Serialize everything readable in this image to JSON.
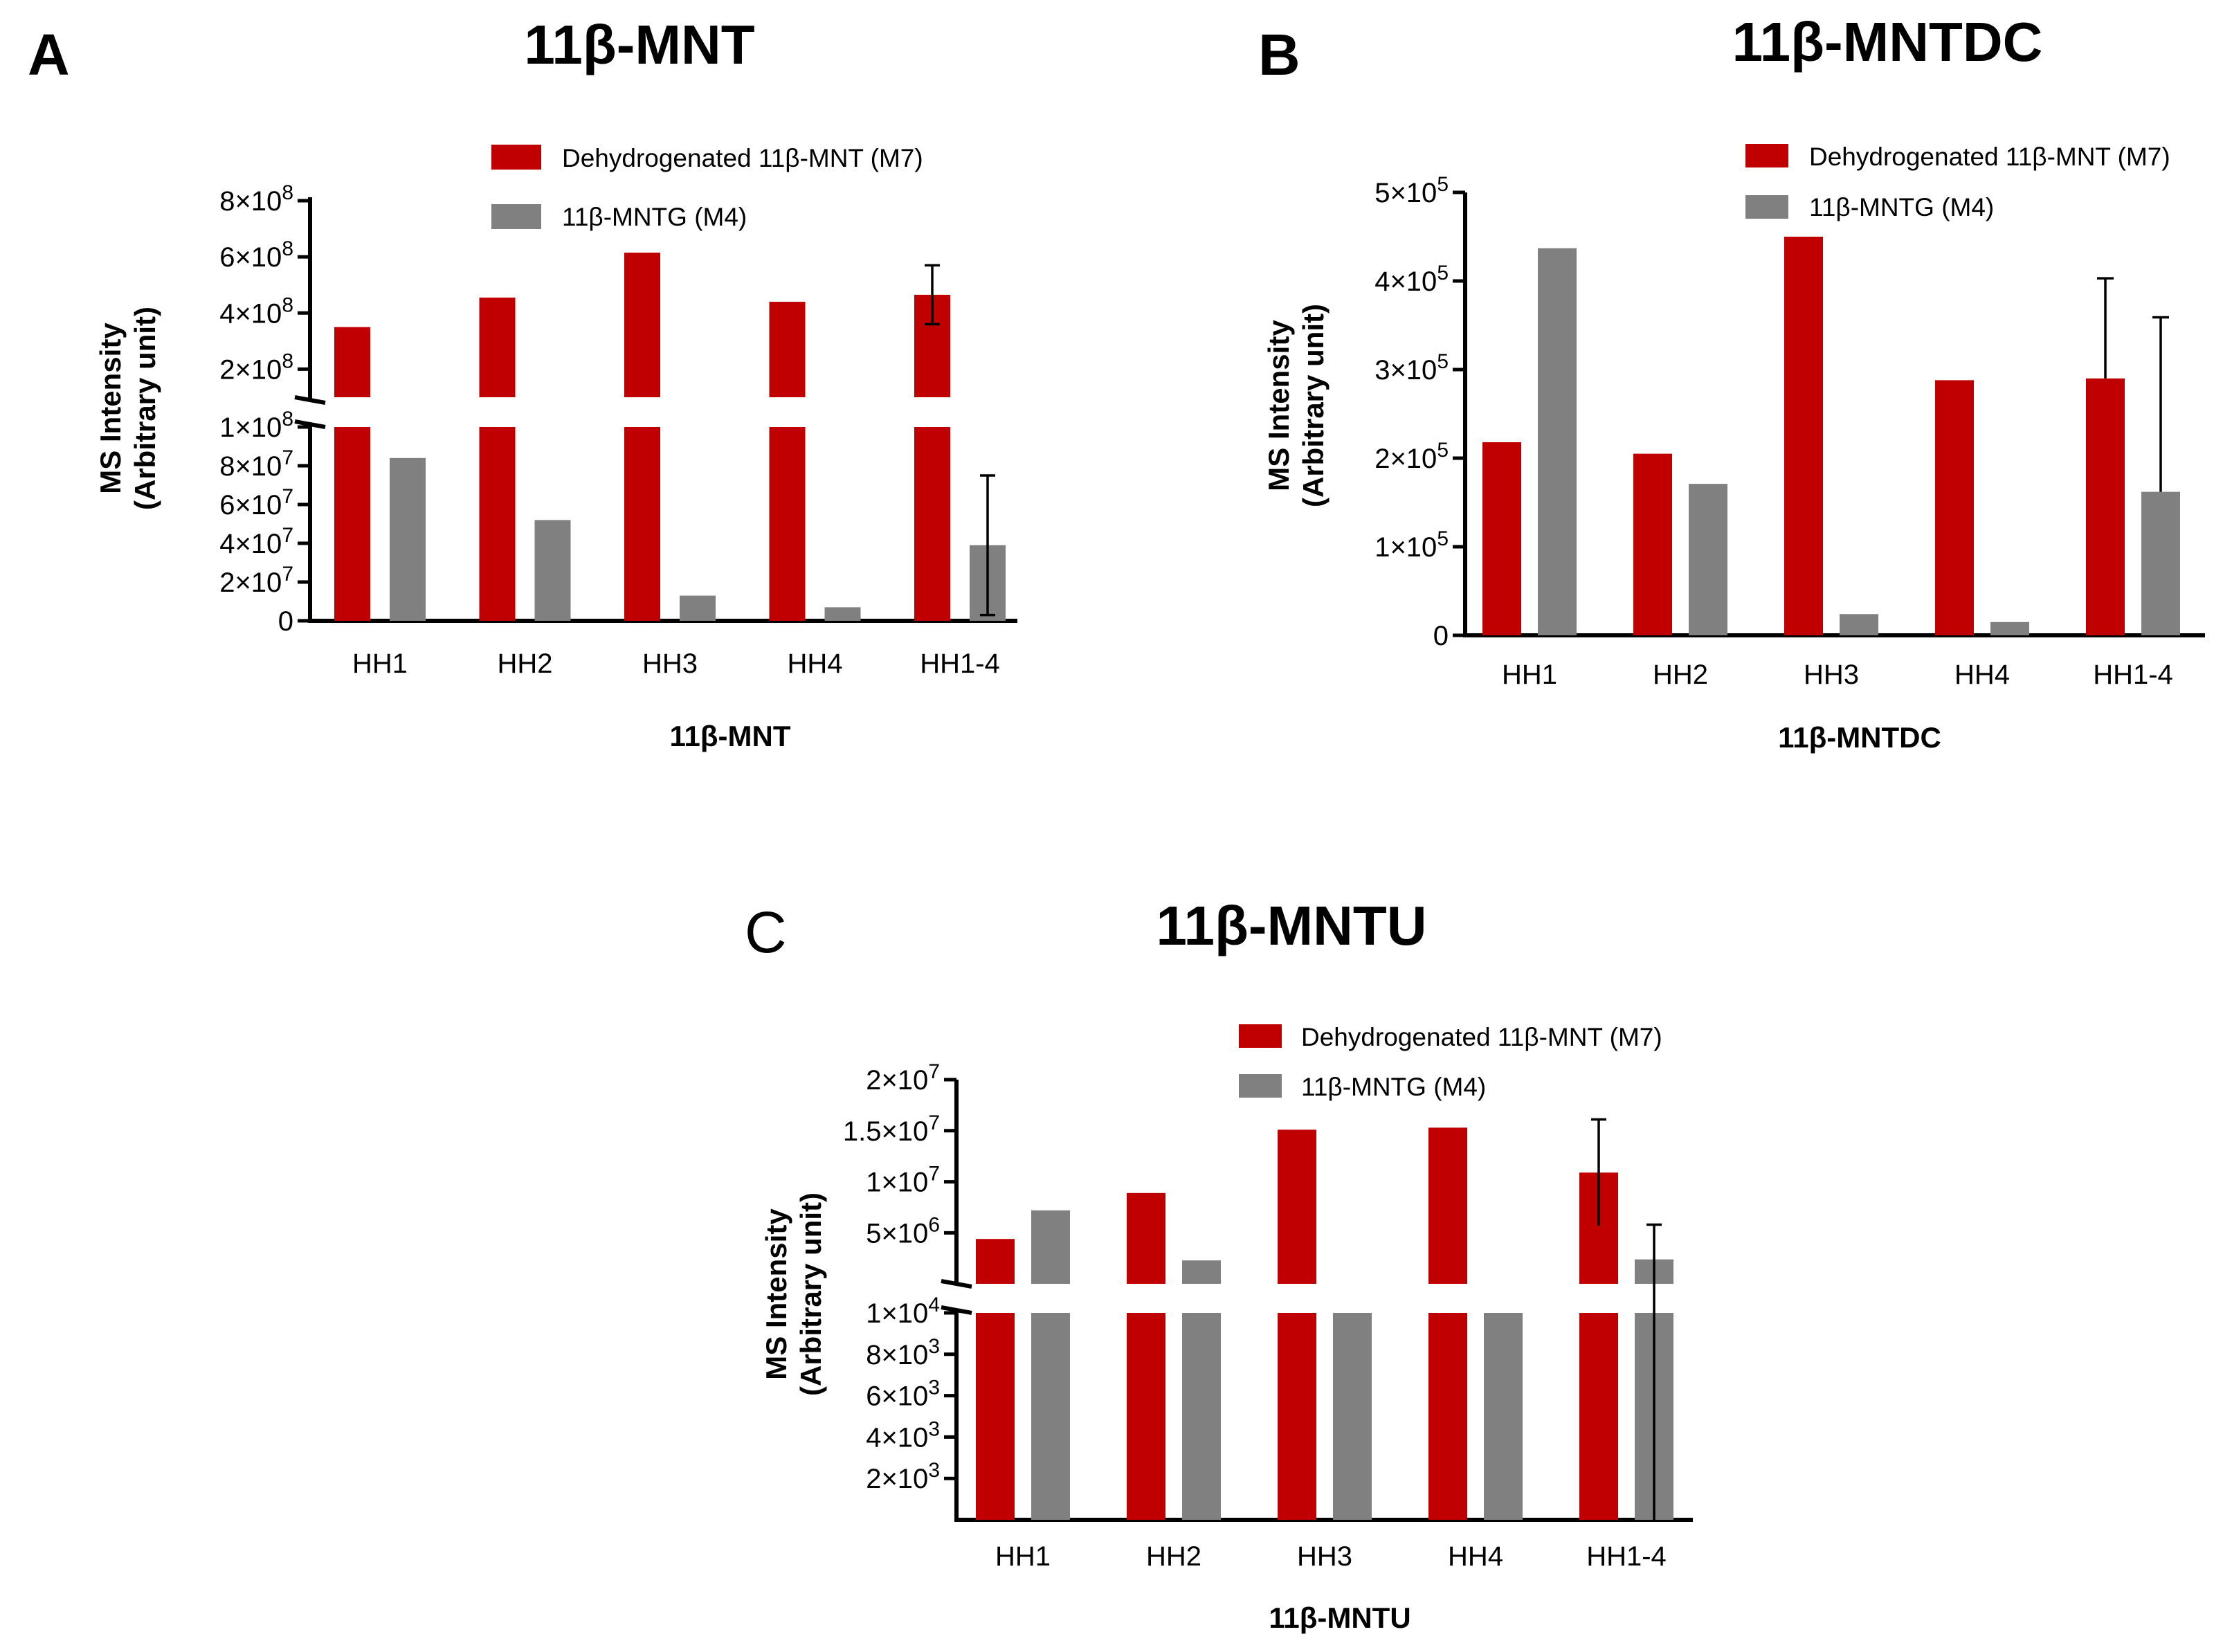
{
  "chart_data": [
    {
      "type": "bar",
      "panel_label": "A",
      "title": "11β-MNT",
      "xlabel": "11β-MNT",
      "ylabel": [
        "MS Intensity",
        "(Arbitrary unit)"
      ],
      "categories": [
        "HH1",
        "HH2",
        "HH3",
        "HH4",
        "HH1-4"
      ],
      "y_axis_break": {
        "lower_range": [
          0,
          100000000
        ],
        "upper_range": [
          100000000,
          800000000
        ]
      },
      "lower_ticks": [
        {
          "v": 0,
          "b": "0",
          "e": ""
        },
        {
          "v": 20000000,
          "b": "2×10",
          "e": "7"
        },
        {
          "v": 40000000,
          "b": "4×10",
          "e": "7"
        },
        {
          "v": 60000000,
          "b": "6×10",
          "e": "7"
        },
        {
          "v": 80000000,
          "b": "8×10",
          "e": "7"
        },
        {
          "v": 100000000,
          "b": "1×10",
          "e": "8"
        }
      ],
      "upper_ticks": [
        {
          "v": 200000000,
          "b": "2×10",
          "e": "8"
        },
        {
          "v": 400000000,
          "b": "4×10",
          "e": "8"
        },
        {
          "v": 600000000,
          "b": "6×10",
          "e": "8"
        },
        {
          "v": 800000000,
          "b": "8×10",
          "e": "8"
        }
      ],
      "series": [
        {
          "name": "Dehydrogenated 11β-MNT (M7)",
          "color": "#c00000",
          "values": [
            350000000,
            455000000,
            615000000,
            440000000,
            465000000
          ],
          "error": [
            null,
            null,
            null,
            null,
            105000000
          ]
        },
        {
          "name": "11β-MNTG (M4)",
          "color": "#808080",
          "values": [
            84000000,
            52000000,
            13000000,
            7000000,
            39000000
          ],
          "error": [
            null,
            null,
            null,
            null,
            36000000
          ]
        }
      ],
      "legend": "top-right",
      "grid": false
    },
    {
      "type": "bar",
      "panel_label": "B",
      "title": "11β-MNTDC",
      "xlabel": "11β-MNTDC",
      "ylabel": [
        "MS Intensity",
        "(Arbitrary unit)"
      ],
      "categories": [
        "HH1",
        "HH2",
        "HH3",
        "HH4",
        "HH1-4"
      ],
      "ylim": [
        0,
        500000
      ],
      "ticks": [
        {
          "v": 0,
          "b": "0",
          "e": ""
        },
        {
          "v": 100000,
          "b": "1×10",
          "e": "5"
        },
        {
          "v": 200000,
          "b": "2×10",
          "e": "5"
        },
        {
          "v": 300000,
          "b": "3×10",
          "e": "5"
        },
        {
          "v": 400000,
          "b": "4×10",
          "e": "5"
        },
        {
          "v": 500000,
          "b": "5×10",
          "e": "5"
        }
      ],
      "series": [
        {
          "name": "Dehydrogenated 11β-MNT (M7)",
          "color": "#c00000",
          "values": [
            218000,
            205000,
            450000,
            288000,
            290000
          ],
          "error": [
            null,
            null,
            null,
            null,
            113000
          ]
        },
        {
          "name": "11β-MNTG (M4)",
          "color": "#808080",
          "values": [
            437000,
            171000,
            24000,
            15000,
            162000
          ],
          "error": [
            null,
            null,
            null,
            null,
            197000
          ]
        }
      ],
      "legend": "top-right",
      "grid": false
    },
    {
      "type": "bar",
      "panel_label": "C",
      "title": "11β-MNTU",
      "xlabel": "11β-MNTU",
      "ylabel": [
        "MS Intensity",
        "(Arbitrary unit)"
      ],
      "categories": [
        "HH1",
        "HH2",
        "HH3",
        "HH4",
        "HH1-4"
      ],
      "y_axis_break": {
        "lower_range": [
          0,
          10000
        ],
        "upper_range": [
          10000,
          20000000
        ]
      },
      "lower_ticks": [
        {
          "v": 2000,
          "b": "2×10",
          "e": "3"
        },
        {
          "v": 4000,
          "b": "4×10",
          "e": "3"
        },
        {
          "v": 6000,
          "b": "6×10",
          "e": "3"
        },
        {
          "v": 8000,
          "b": "8×10",
          "e": "3"
        },
        {
          "v": 10000,
          "b": "1×10",
          "e": "4"
        }
      ],
      "upper_ticks": [
        {
          "v": 5000000,
          "b": "5×10",
          "e": "6"
        },
        {
          "v": 10000000,
          "b": "1×10",
          "e": "7"
        },
        {
          "v": 15000000,
          "b": "1.5×10",
          "e": "7"
        },
        {
          "v": 20000000,
          "b": "2×10",
          "e": "7"
        }
      ],
      "series": [
        {
          "name": "Dehydrogenated 11β-MNT (M7)",
          "color": "#c00000",
          "values": [
            4400000,
            8900000,
            15100000,
            15300000,
            10900000
          ],
          "error": [
            null,
            null,
            null,
            null,
            5200000
          ]
        },
        {
          "name": "11β-MNTG (M4)",
          "color": "#808080",
          "values": [
            7200000,
            2300000,
            12000,
            12000,
            2400000
          ],
          "error": [
            null,
            null,
            null,
            null,
            3400000
          ]
        }
      ],
      "legend": "top-right",
      "grid": false
    }
  ]
}
